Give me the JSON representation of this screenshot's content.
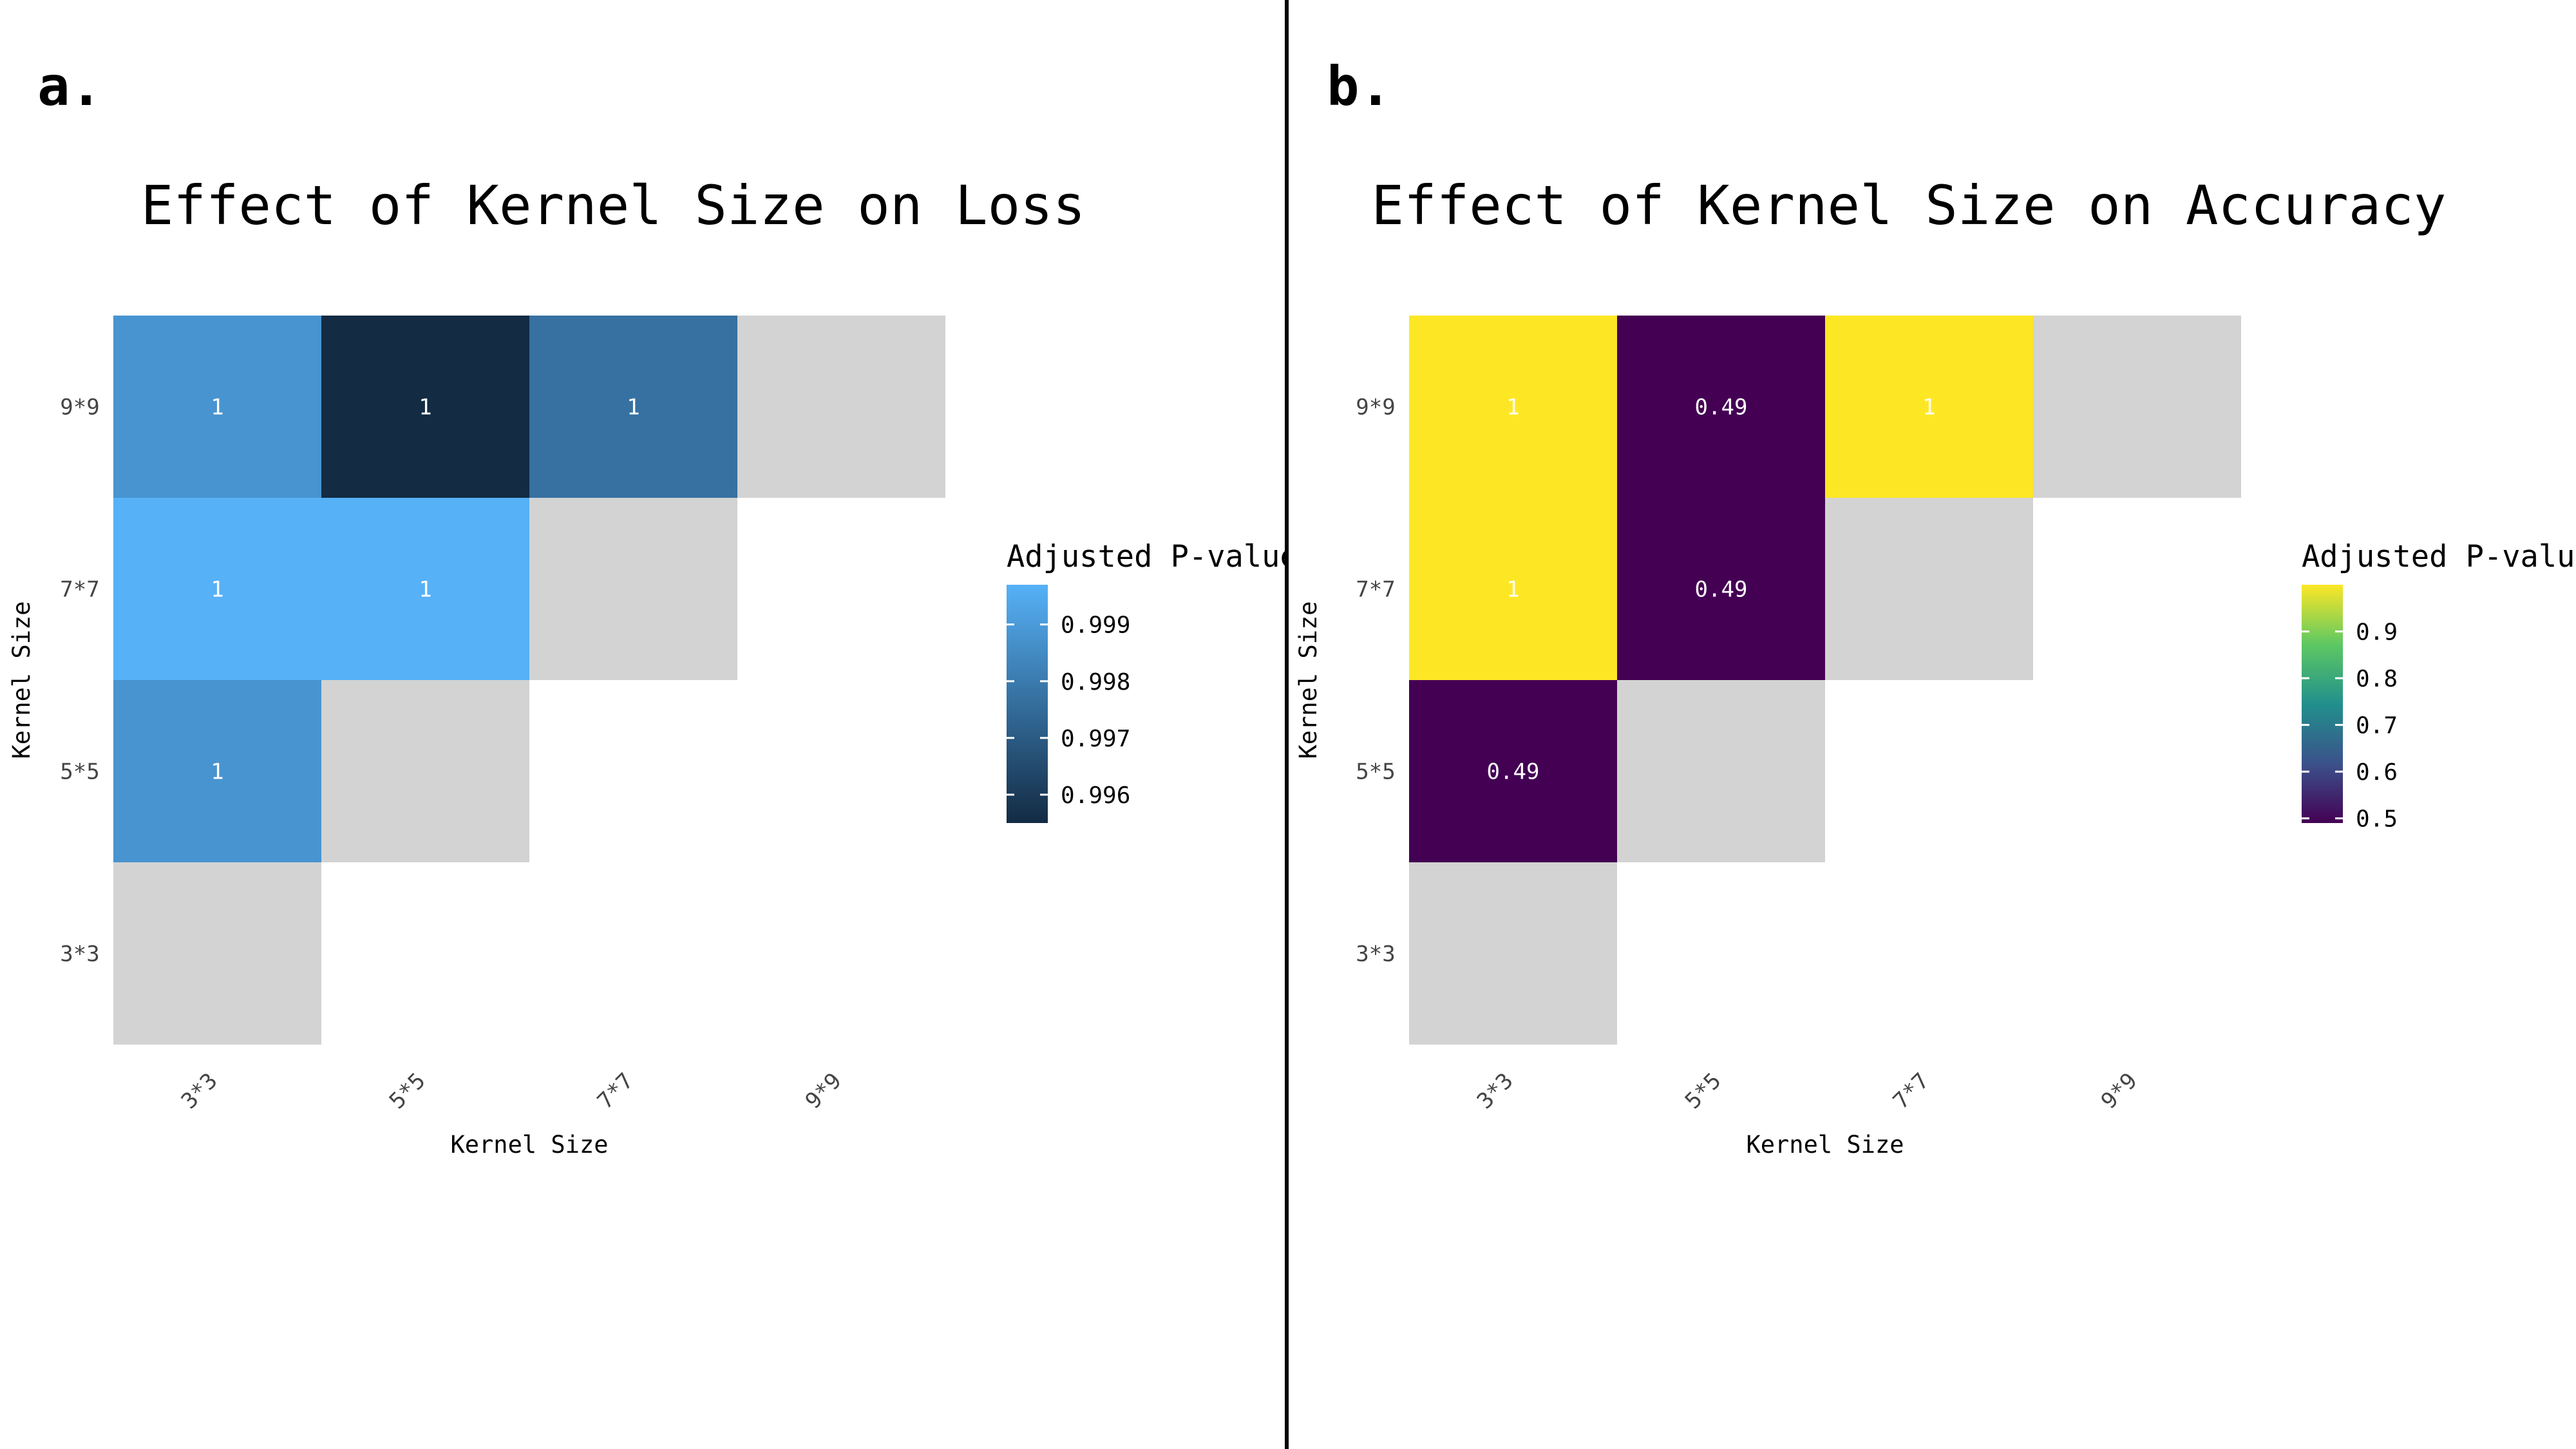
{
  "panels": [
    {
      "letter": "a.",
      "chart_data": {
        "type": "heatmap",
        "title": "Effect of Kernel Size on Loss",
        "xlabel": "Kernel Size",
        "ylabel": "Kernel Size",
        "x_categories": [
          "3*3",
          "5*5",
          "7*7",
          "9*9"
        ],
        "y_categories": [
          "3*3",
          "5*5",
          "7*7",
          "9*9"
        ],
        "cells": [
          {
            "x": "3*3",
            "y": "9*9",
            "value": 0.9988,
            "label": "1"
          },
          {
            "x": "5*5",
            "y": "9*9",
            "value": 0.9955,
            "label": "1"
          },
          {
            "x": "7*7",
            "y": "9*9",
            "value": 0.9977,
            "label": "1"
          },
          {
            "x": "9*9",
            "y": "9*9",
            "value": null,
            "label": ""
          },
          {
            "x": "3*3",
            "y": "7*7",
            "value": 0.9997,
            "label": "1"
          },
          {
            "x": "5*5",
            "y": "7*7",
            "value": 0.9997,
            "label": "1"
          },
          {
            "x": "7*7",
            "y": "7*7",
            "value": null,
            "label": ""
          },
          {
            "x": "3*3",
            "y": "5*5",
            "value": 0.9988,
            "label": "1"
          },
          {
            "x": "5*5",
            "y": "5*5",
            "value": null,
            "label": ""
          },
          {
            "x": "3*3",
            "y": "3*3",
            "value": null,
            "label": ""
          }
        ],
        "legend": {
          "title": "Adjusted P-value",
          "range": [
            0.9955,
            0.9997
          ],
          "ticks": [
            0.996,
            0.997,
            0.998,
            0.999
          ],
          "tick_labels": [
            "0.996",
            "0.997",
            "0.998",
            "0.999"
          ],
          "colors": [
            "#132B43",
            "#56B1F7"
          ],
          "placement": "right"
        },
        "na_color": "#d3d3d3",
        "grid": false
      }
    },
    {
      "letter": "b.",
      "chart_data": {
        "type": "heatmap",
        "title": "Effect of Kernel Size on Accuracy",
        "xlabel": "Kernel Size",
        "ylabel": "Kernel Size",
        "x_categories": [
          "3*3",
          "5*5",
          "7*7",
          "9*9"
        ],
        "y_categories": [
          "3*3",
          "5*5",
          "7*7",
          "9*9"
        ],
        "cells": [
          {
            "x": "3*3",
            "y": "9*9",
            "value": 1.0,
            "label": "1"
          },
          {
            "x": "5*5",
            "y": "9*9",
            "value": 0.49,
            "label": "0.49"
          },
          {
            "x": "7*7",
            "y": "9*9",
            "value": 1.0,
            "label": "1"
          },
          {
            "x": "9*9",
            "y": "9*9",
            "value": null,
            "label": ""
          },
          {
            "x": "3*3",
            "y": "7*7",
            "value": 1.0,
            "label": "1"
          },
          {
            "x": "5*5",
            "y": "7*7",
            "value": 0.49,
            "label": "0.49"
          },
          {
            "x": "7*7",
            "y": "7*7",
            "value": null,
            "label": ""
          },
          {
            "x": "3*3",
            "y": "5*5",
            "value": 0.49,
            "label": "0.49"
          },
          {
            "x": "5*5",
            "y": "5*5",
            "value": null,
            "label": ""
          },
          {
            "x": "3*3",
            "y": "3*3",
            "value": null,
            "label": ""
          }
        ],
        "legend": {
          "title": "Adjusted P-value",
          "range": [
            0.49,
            1.0
          ],
          "ticks": [
            0.5,
            0.6,
            0.7,
            0.8,
            0.9
          ],
          "tick_labels": [
            "0.5",
            "0.6",
            "0.7",
            "0.8",
            "0.9"
          ],
          "colors": [
            "#440154",
            "#3B528B",
            "#21908C",
            "#5DC863",
            "#FDE725"
          ],
          "placement": "right"
        },
        "na_color": "#d3d3d3",
        "grid": false
      }
    }
  ]
}
